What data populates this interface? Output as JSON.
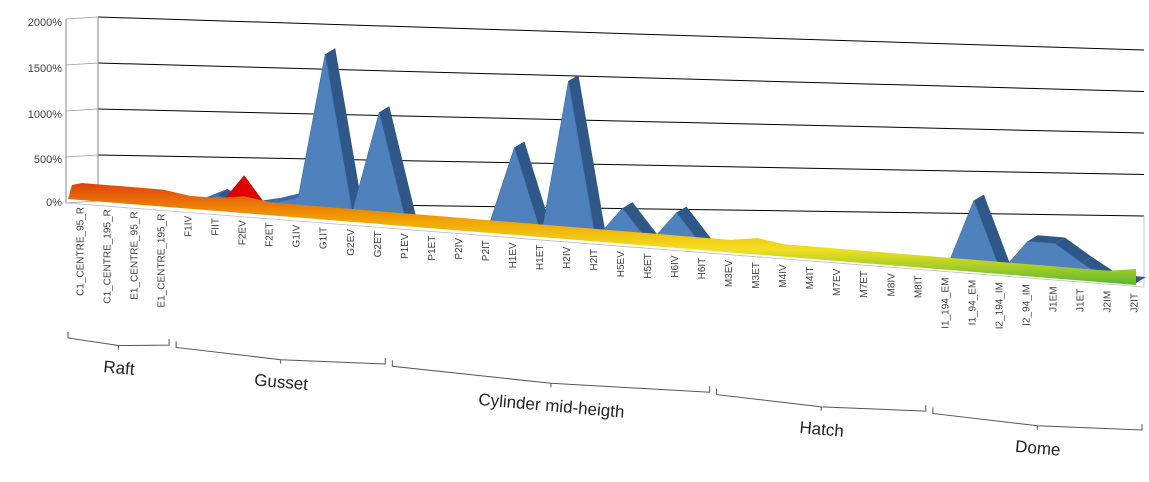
{
  "chart_data": {
    "type": "area",
    "view": "3d-perspective",
    "y_ticks": [
      "2000%",
      "1500%",
      "1000%",
      "500%",
      "0%"
    ],
    "ylim": [
      0,
      2000
    ],
    "grid": true,
    "categories": [
      "C1_CENTRE_95_R",
      "C1_CENTRE_195_R",
      "E1_CENTRE_95_R",
      "E1_CENTRE_195_R",
      "F1IV",
      "FIIT",
      "F2EV",
      "F2ET",
      "G1IV",
      "G1IT",
      "G2EV",
      "G2ET",
      "P1EV",
      "P1ET",
      "P2IV",
      "P2IT",
      "H1EV",
      "H1ET",
      "H2IV",
      "H2IT",
      "H5EV",
      "H5ET",
      "H6IV",
      "H6IT",
      "M3EV",
      "M3ET",
      "M4IV",
      "M4IT",
      "M7EV",
      "M7ET",
      "M8IV",
      "M8IT",
      "I1_194_EM",
      "I1_94_EM",
      "I2_194_IM",
      "I2_94_IM",
      "J1EM",
      "J1ET",
      "J2IM",
      "J2IT"
    ],
    "series": [
      {
        "color": "#4F81BD",
        "values": [
          0,
          0,
          0,
          0,
          0,
          150,
          30,
          100,
          200,
          1880,
          80,
          1260,
          0,
          0,
          0,
          0,
          980,
          0,
          1800,
          0,
          380,
          0,
          380,
          0,
          0,
          0,
          0,
          0,
          0,
          0,
          0,
          0,
          0,
          800,
          0,
          380,
          380,
          180,
          0,
          0
        ]
      },
      {
        "color": "#E00000",
        "values": [
          60,
          90,
          40,
          70,
          0,
          0,
          400,
          0,
          0,
          0,
          0,
          0,
          0,
          0,
          0,
          0,
          0,
          0,
          0,
          0,
          0,
          0,
          0,
          0,
          0,
          60,
          0,
          0,
          0,
          0,
          0,
          0,
          0,
          0,
          0,
          0,
          0,
          0,
          0,
          80
        ]
      }
    ],
    "groups": [
      {
        "label": "Raft",
        "from": 0,
        "to": 3
      },
      {
        "label": "Gusset",
        "from": 4,
        "to": 11
      },
      {
        "label": "Cylinder mid-heigth",
        "from": 12,
        "to": 23
      },
      {
        "label": "Hatch",
        "from": 24,
        "to": 31
      },
      {
        "label": "Dome",
        "from": 32,
        "to": 39
      }
    ]
  }
}
